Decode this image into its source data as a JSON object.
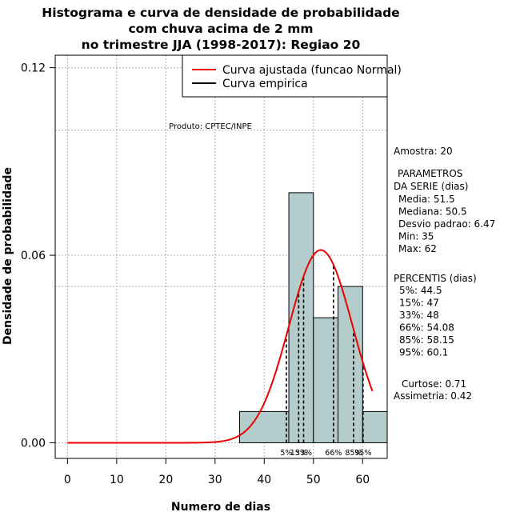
{
  "chart_data": {
    "type": "bar",
    "title_lines": [
      "Histograma e curva de densidade de probabilidade",
      "com chuva acima de 2 mm",
      "no trimestre JJA (1998-2017): Regiao 20"
    ],
    "xlabel": "Numero de dias",
    "ylabel": "Densidade de probabilidade",
    "xlim": [
      -2.5,
      65
    ],
    "ylim": [
      -0.005,
      0.124
    ],
    "x_ticks": [
      0,
      10,
      20,
      30,
      40,
      50,
      60
    ],
    "x_tick_labels": [
      "0",
      "10",
      "20",
      "30",
      "40",
      "50",
      "60"
    ],
    "y_ticks": [
      0.0,
      0.06,
      0.12
    ],
    "y_tick_labels": [
      "0.00",
      "0.06",
      "0.12"
    ],
    "grid": true,
    "grid_x": [
      0,
      10,
      20,
      30,
      40,
      50,
      60
    ],
    "grid_y": [
      0.0,
      0.05,
      0.06,
      0.1,
      0.12
    ],
    "bins": [
      {
        "start": 35,
        "end": 45,
        "density": 0.01
      },
      {
        "start": 45,
        "end": 50,
        "density": 0.08
      },
      {
        "start": 50,
        "end": 55,
        "density": 0.04
      },
      {
        "start": 55,
        "end": 60,
        "density": 0.05
      },
      {
        "start": 60,
        "end": 65,
        "density": 0.01
      }
    ],
    "bar_color": "#b5cccc",
    "normal_curve": {
      "mean": 51.5,
      "sd": 6.47,
      "x_range": [
        0,
        62
      ],
      "color": "#ee0000"
    },
    "empirical_line_color": "#000000",
    "legend": {
      "position": "top-right",
      "entries": [
        {
          "label": "Curva ajustada (funcao Normal)",
          "color": "#ee0000"
        },
        {
          "label": "Curva empirica",
          "color": "#000000"
        }
      ]
    },
    "product_label": "Produto: CPTEC/INPE",
    "percentile_markers": [
      {
        "label": "5%",
        "value": 44.5
      },
      {
        "label": "15%",
        "value": 47
      },
      {
        "label": "33%",
        "value": 48
      },
      {
        "label": "66%",
        "value": 54.08
      },
      {
        "label": "85%",
        "value": 58.15
      },
      {
        "label": "95%",
        "value": 60.1
      }
    ],
    "side_panel": {
      "sample": "Amostra: 20",
      "params_header_1": "PARAMETROS",
      "params_header_2": "DA SERIE (dias)",
      "params": [
        "Media: 51.5",
        "Mediana: 50.5",
        "Desvio padrao: 6.47",
        "Min: 35",
        "Max: 62"
      ],
      "percentis_header": "PERCENTIS (dias)",
      "percentis": [
        "5%: 44.5",
        "15%: 47",
        "33%: 48",
        "66%: 54.08",
        "85%: 58.15",
        "95%: 60.1"
      ],
      "curtose": "Curtose: 0.71",
      "assimetria": "Assimetria: 0.42"
    }
  }
}
